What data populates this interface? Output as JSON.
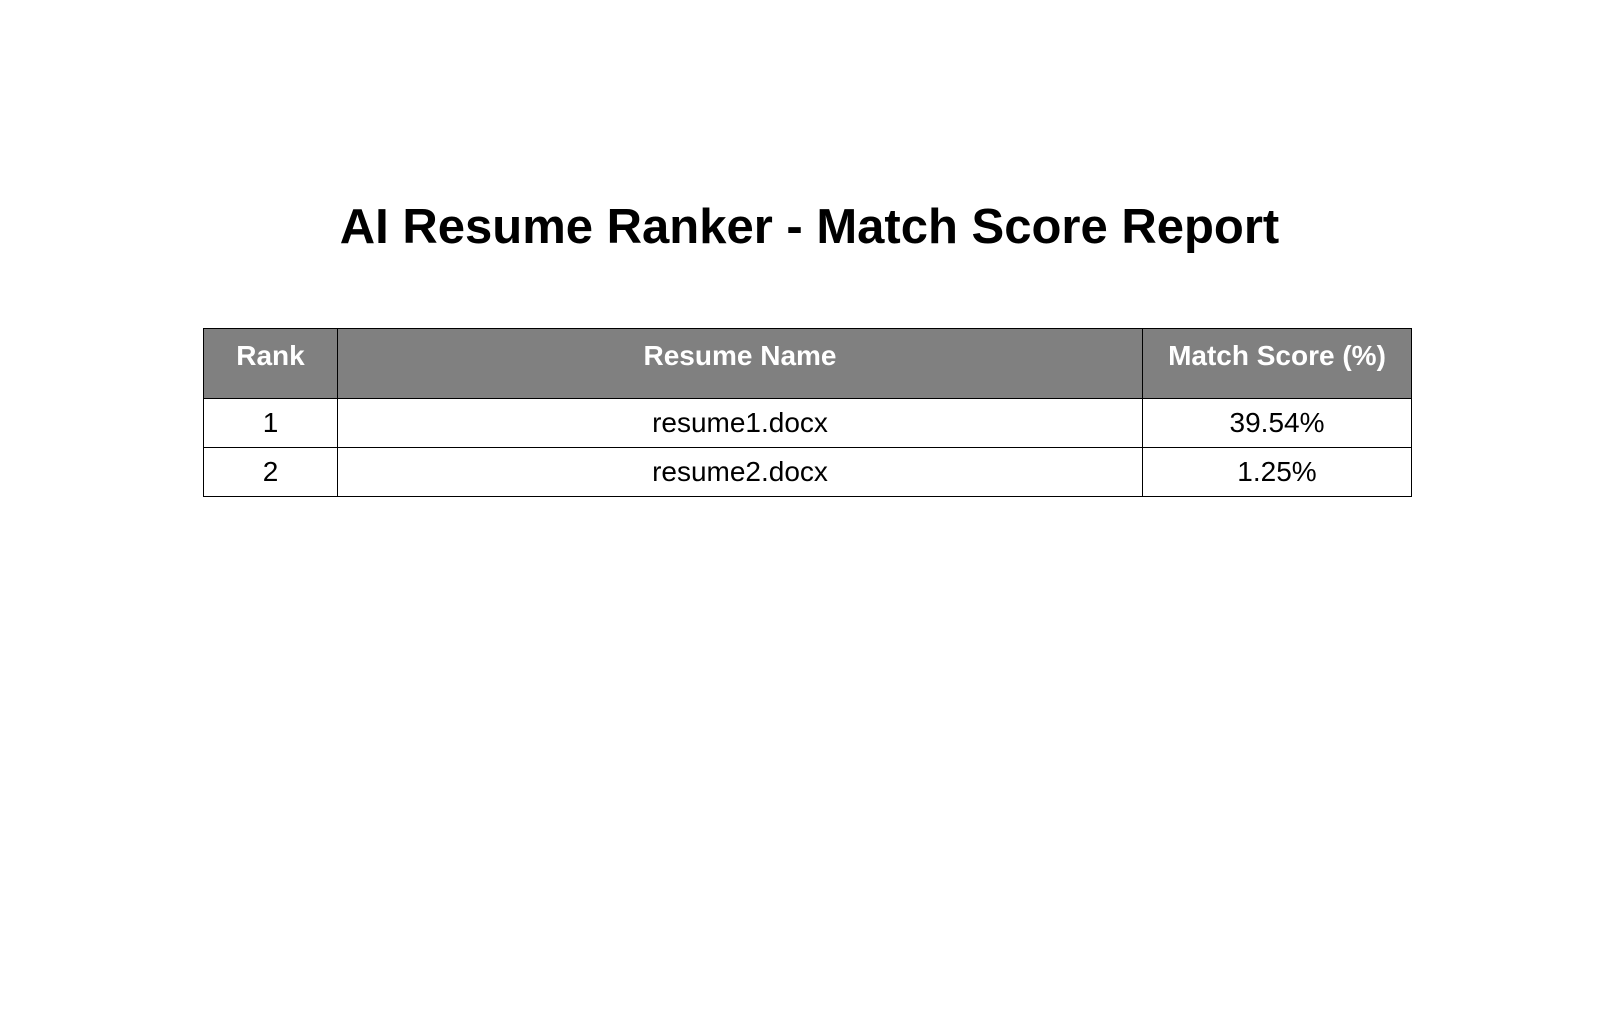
{
  "report": {
    "title": "AI Resume Ranker - Match Score Report",
    "table": {
      "headers": {
        "rank": "Rank",
        "resume_name": "Resume Name",
        "match_score": "Match Score (%)"
      },
      "rows": [
        {
          "rank": "1",
          "resume_name": "resume1.docx",
          "match_score": "39.54%"
        },
        {
          "rank": "2",
          "resume_name": "resume2.docx",
          "match_score": "1.25%"
        }
      ]
    }
  },
  "colors": {
    "header_background": "#808080",
    "header_text": "#ffffff",
    "border": "#000000",
    "text": "#000000"
  }
}
